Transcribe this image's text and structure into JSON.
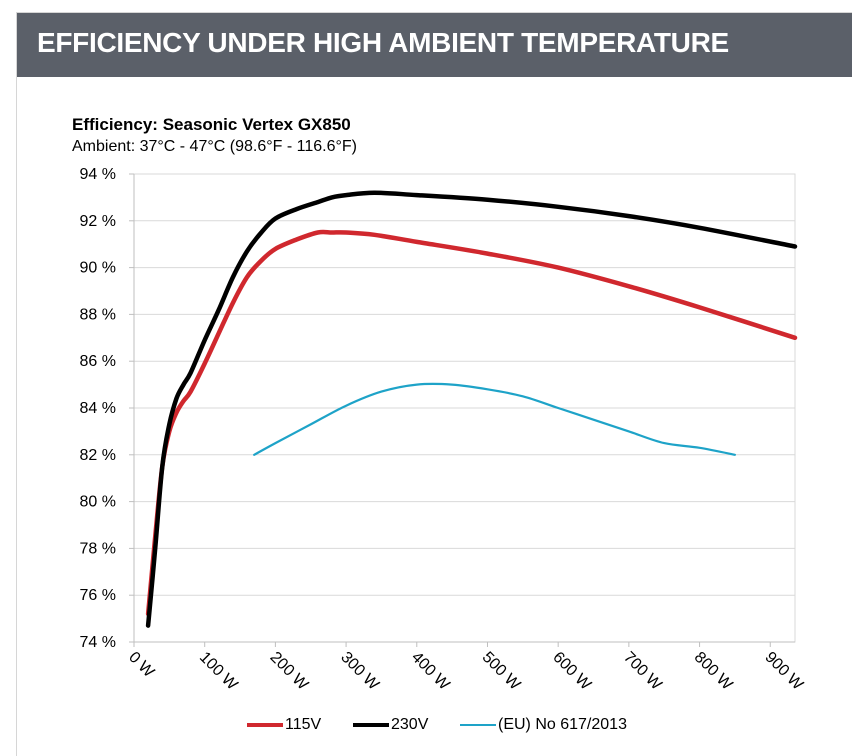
{
  "header": {
    "title": "EFFICIENCY UNDER HIGH AMBIENT TEMPERATURE"
  },
  "chart_data": {
    "type": "line",
    "title": "Efficiency: Seasonic Vertex GX850",
    "subtitle": "Ambient: 37°C - 47°C (98.6°F - 116.6°F)",
    "xlabel": "",
    "ylabel": "",
    "xlim": [
      0,
      935
    ],
    "ylim": [
      74,
      94
    ],
    "x_ticks": [
      0,
      100,
      200,
      300,
      400,
      500,
      600,
      700,
      800,
      900
    ],
    "x_tick_labels": [
      "0 W",
      "100 W",
      "200 W",
      "300 W",
      "400 W",
      "500 W",
      "600 W",
      "700 W",
      "800 W",
      "900 W"
    ],
    "y_ticks": [
      74,
      76,
      78,
      80,
      82,
      84,
      86,
      88,
      90,
      92,
      94
    ],
    "y_tick_labels": [
      "74 %",
      "76 %",
      "78 %",
      "80 %",
      "82 %",
      "84 %",
      "86 %",
      "88 %",
      "90 %",
      "92 %",
      "94 %"
    ],
    "grid": true,
    "legend_position": "bottom",
    "series": [
      {
        "name": "115V",
        "color": "#d0282e",
        "width": 4.5,
        "x": [
          20,
          30,
          40,
          50,
          60,
          70,
          80,
          100,
          120,
          140,
          160,
          180,
          200,
          230,
          260,
          280,
          300,
          340,
          400,
          500,
          600,
          700,
          800,
          935
        ],
        "y": [
          75.2,
          78.5,
          81.5,
          83.0,
          83.8,
          84.3,
          84.7,
          85.9,
          87.2,
          88.5,
          89.6,
          90.3,
          90.8,
          91.2,
          91.5,
          91.5,
          91.5,
          91.4,
          91.1,
          90.6,
          90.0,
          89.2,
          88.3,
          87.0
        ]
      },
      {
        "name": "230V",
        "color": "#000000",
        "width": 4.5,
        "x": [
          20,
          30,
          40,
          50,
          60,
          70,
          80,
          100,
          120,
          140,
          160,
          180,
          200,
          230,
          260,
          280,
          300,
          340,
          400,
          500,
          600,
          700,
          800,
          935
        ],
        "y": [
          74.7,
          78.0,
          81.5,
          83.3,
          84.4,
          85.0,
          85.5,
          86.9,
          88.2,
          89.6,
          90.7,
          91.5,
          92.1,
          92.5,
          92.8,
          93.0,
          93.1,
          93.2,
          93.1,
          92.9,
          92.6,
          92.2,
          91.7,
          90.9
        ]
      },
      {
        "name": "(EU) No 617/2013",
        "color": "#1ea3c8",
        "width": 2.2,
        "x": [
          170,
          200,
          250,
          300,
          350,
          400,
          450,
          500,
          550,
          600,
          650,
          700,
          750,
          800,
          850
        ],
        "y": [
          82.0,
          82.5,
          83.3,
          84.1,
          84.7,
          85.0,
          85.0,
          84.8,
          84.5,
          84.0,
          83.5,
          83.0,
          82.5,
          82.3,
          82.0
        ]
      }
    ]
  }
}
